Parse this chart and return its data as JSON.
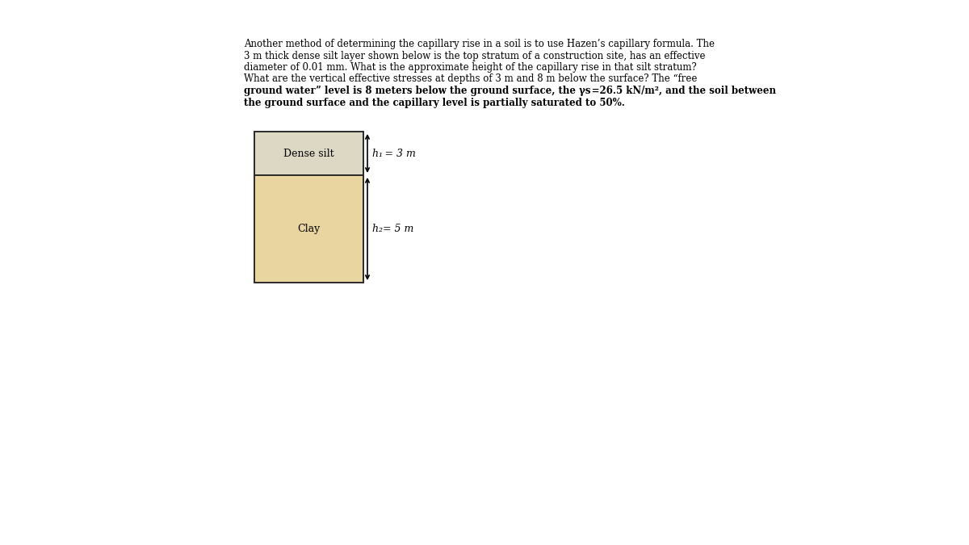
{
  "line1": "Another method of determining the capillary rise in a soil is to use Hazen’s capillary formula. The",
  "line2": "3 m thick dense silt layer shown below is the top stratum of a construction site, has an effective",
  "line3": "diameter of 0.01 mm. What is the approximate height of the capillary rise in that silt stratum?",
  "line4": "What are the vertical effective stresses at depths of 3 m and 8 m below the surface? The “free",
  "line5": "ground water” level is 8 meters below the ground surface, the γs =26.5 kN/m², and the soil between",
  "line6": "the ground surface and the capillary level is partially saturated to 50%.",
  "silt_label": "Dense silt",
  "clay_label": "Clay",
  "h1_label": "h₁ = 3 m",
  "h2_label": "h₂= 5 m",
  "silt_color": "#ddd8c4",
  "clay_color": "#e8d5a0",
  "border_color": "#2a2a2a",
  "bg_color": "#ffffff",
  "text_fontsize": 8.5,
  "label_fontsize": 9.0
}
